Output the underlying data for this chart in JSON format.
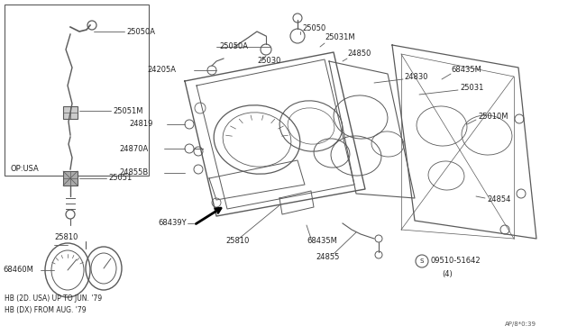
{
  "bg_color": "#ffffff",
  "line_color": "#5a5a5a",
  "text_color": "#333333",
  "diagram_code": "AP/8*0:39",
  "notes": [
    "HB (2D. USA) UP TO JUN. '79",
    "HB (DX) FROM AUG. '79"
  ],
  "op_label": "OP:USA",
  "figsize": [
    6.4,
    3.72
  ],
  "dpi": 100
}
